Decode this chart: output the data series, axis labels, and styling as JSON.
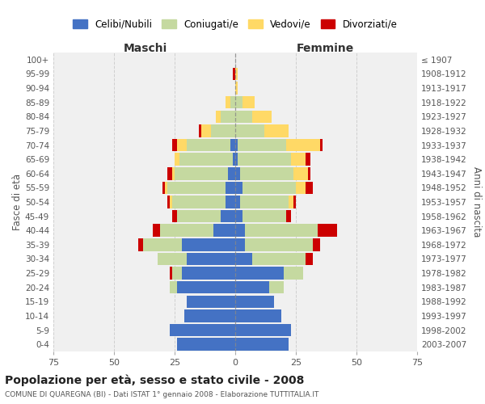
{
  "age_groups": [
    "0-4",
    "5-9",
    "10-14",
    "15-19",
    "20-24",
    "25-29",
    "30-34",
    "35-39",
    "40-44",
    "45-49",
    "50-54",
    "55-59",
    "60-64",
    "65-69",
    "70-74",
    "75-79",
    "80-84",
    "85-89",
    "90-94",
    "95-99",
    "100+"
  ],
  "birth_years": [
    "2003-2007",
    "1998-2002",
    "1993-1997",
    "1988-1992",
    "1983-1987",
    "1978-1982",
    "1973-1977",
    "1968-1972",
    "1963-1967",
    "1958-1962",
    "1953-1957",
    "1948-1952",
    "1943-1947",
    "1938-1942",
    "1933-1937",
    "1928-1932",
    "1923-1927",
    "1918-1922",
    "1913-1917",
    "1908-1912",
    "≤ 1907"
  ],
  "colors": {
    "celibe": "#4472C4",
    "coniugato": "#C5D9A0",
    "vedovo": "#FFD966",
    "divorziato": "#CC0000"
  },
  "maschi": {
    "celibe": [
      24,
      27,
      21,
      20,
      24,
      22,
      20,
      22,
      9,
      6,
      4,
      4,
      3,
      1,
      2,
      0,
      0,
      0,
      0,
      0,
      0
    ],
    "coniugato": [
      0,
      0,
      0,
      0,
      3,
      4,
      12,
      16,
      22,
      18,
      22,
      24,
      22,
      22,
      18,
      10,
      6,
      2,
      0,
      0,
      0
    ],
    "vedovo": [
      0,
      0,
      0,
      0,
      0,
      0,
      0,
      0,
      0,
      0,
      1,
      1,
      1,
      2,
      4,
      4,
      2,
      2,
      0,
      0,
      0
    ],
    "divorziato": [
      0,
      0,
      0,
      0,
      0,
      1,
      0,
      2,
      3,
      2,
      1,
      1,
      2,
      0,
      2,
      1,
      0,
      0,
      0,
      1,
      0
    ]
  },
  "femmine": {
    "celibe": [
      22,
      23,
      19,
      16,
      14,
      20,
      7,
      4,
      4,
      3,
      2,
      3,
      2,
      1,
      1,
      0,
      0,
      0,
      0,
      0,
      0
    ],
    "coniugato": [
      0,
      0,
      0,
      0,
      6,
      8,
      22,
      28,
      30,
      18,
      20,
      22,
      22,
      22,
      20,
      12,
      7,
      3,
      0,
      0,
      0
    ],
    "vedovo": [
      0,
      0,
      0,
      0,
      0,
      0,
      0,
      0,
      0,
      0,
      2,
      4,
      6,
      6,
      14,
      10,
      8,
      5,
      1,
      1,
      0
    ],
    "divorziato": [
      0,
      0,
      0,
      0,
      0,
      0,
      3,
      3,
      8,
      2,
      1,
      3,
      1,
      2,
      1,
      0,
      0,
      0,
      0,
      0,
      0
    ]
  },
  "xlim": 75,
  "title": "Popolazione per età, sesso e stato civile - 2008",
  "subtitle": "COMUNE DI QUAREGNA (BI) - Dati ISTAT 1° gennaio 2008 - Elaborazione TUTTITALIA.IT",
  "xlabel_left": "Maschi",
  "xlabel_right": "Femmine",
  "ylabel_left": "Fasce di età",
  "ylabel_right": "Anni di nascita",
  "legend_labels": [
    "Celibi/Nubili",
    "Coniugati/e",
    "Vedovi/e",
    "Divorziati/e"
  ],
  "bg_color": "#ffffff",
  "plot_bg_color": "#f0f0f0",
  "grid_color": "#cccccc"
}
